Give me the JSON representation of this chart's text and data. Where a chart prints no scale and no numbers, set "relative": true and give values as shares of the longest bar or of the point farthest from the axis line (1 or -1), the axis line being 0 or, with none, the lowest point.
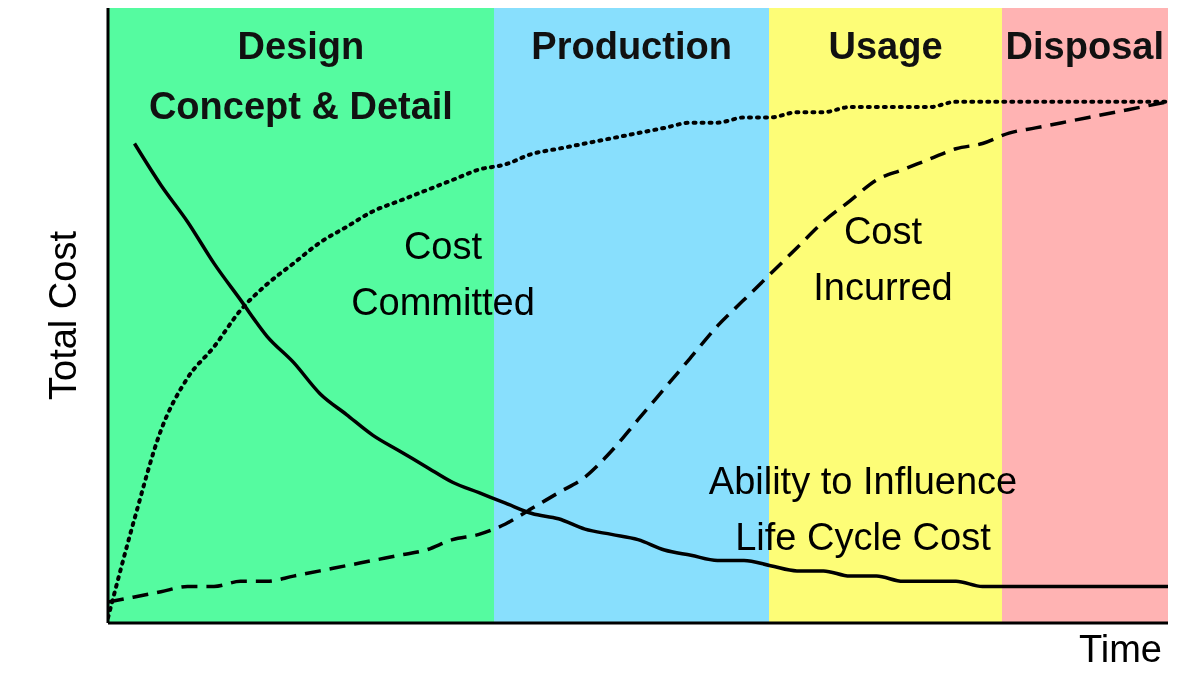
{
  "chart_data": {
    "type": "line",
    "relative": true,
    "xlabel": "Time",
    "ylabel": "Total Cost",
    "annotations": [
      "Design\nConcept & Detail",
      "Production",
      "Usage",
      "Disposal"
    ],
    "categories": [
      null,
      null,
      null,
      null,
      null,
      null,
      null,
      null,
      null,
      null,
      null,
      null,
      null,
      null,
      null,
      null,
      null,
      null,
      null,
      null,
      null,
      null,
      null,
      null,
      null,
      null,
      null,
      null,
      null,
      null,
      null,
      null,
      null,
      null,
      null,
      null,
      null,
      null,
      null,
      null,
      null
    ],
    "series": [
      {
        "name": "Cost\nCommitted",
        "color": "#000000",
        "line_style": "dotted",
        "values": [
          0.01,
          0.2,
          0.37,
          0.47,
          0.53,
          0.6,
          0.65,
          0.69,
          0.73,
          0.76,
          0.79,
          0.81,
          0.83,
          0.85,
          0.87,
          0.88,
          0.9,
          0.91,
          0.92,
          0.93,
          0.94,
          0.95,
          0.96,
          0.96,
          0.97,
          0.97,
          0.98,
          0.98,
          0.99,
          0.99,
          0.99,
          0.99,
          1.0,
          1.0,
          1.0,
          1.0,
          1.0,
          1.0,
          1.0,
          1.0,
          1.0
        ]
      },
      {
        "name": "Cost\nIncurred",
        "color": "#000000",
        "line_style": "dashed",
        "values": [
          0.04,
          0.05,
          0.06,
          0.07,
          0.07,
          0.08,
          0.08,
          0.09,
          0.1,
          0.11,
          0.12,
          0.13,
          0.14,
          0.16,
          0.17,
          0.19,
          0.22,
          0.25,
          0.28,
          0.33,
          0.39,
          0.45,
          0.51,
          0.57,
          0.62,
          0.67,
          0.72,
          0.77,
          0.81,
          0.85,
          0.87,
          0.89,
          0.91,
          0.92,
          0.94,
          0.95,
          0.96,
          0.97,
          0.98,
          0.99,
          1.0
        ]
      },
      {
        "name": "Ability to Influence\nLife Cycle Cost",
        "color": "#000000",
        "line_style": "solid",
        "values": [
          null,
          0.92,
          0.84,
          0.77,
          0.69,
          0.62,
          0.55,
          0.5,
          0.44,
          0.4,
          0.36,
          0.33,
          0.3,
          0.27,
          0.25,
          0.23,
          0.21,
          0.2,
          0.18,
          0.17,
          0.16,
          0.14,
          0.13,
          0.12,
          0.12,
          0.11,
          0.1,
          0.1,
          0.09,
          0.09,
          0.08,
          0.08,
          0.08,
          0.07,
          0.07,
          0.07,
          0.07,
          0.07,
          0.07,
          0.07,
          0.07
        ]
      }
    ]
  }
}
